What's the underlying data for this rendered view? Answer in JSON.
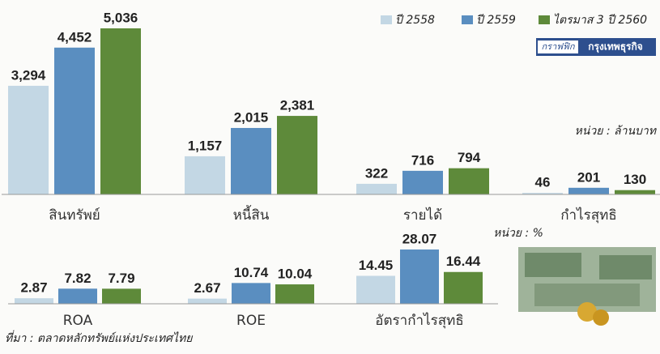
{
  "chart_data": [
    {
      "type": "bar",
      "unit": "หน่วย : ล้านบาท",
      "categories": [
        "สินทรัพย์",
        "หนี้สิน",
        "รายได้",
        "กำไรสุทธิ"
      ],
      "series": [
        {
          "name": "ปี 2558",
          "color": "#c3d7e4",
          "values": [
            3294,
            1157,
            322,
            46
          ],
          "value_labels": [
            "3,294",
            "1,157",
            "322",
            "46"
          ]
        },
        {
          "name": "ปี 2559",
          "color": "#5a8ec0",
          "values": [
            4452,
            2015,
            716,
            201
          ],
          "value_labels": [
            "4,452",
            "2,015",
            "716",
            "201"
          ]
        },
        {
          "name": "ไตรมาส 3 ปี 2560",
          "color": "#5e8a3a",
          "values": [
            5036,
            2381,
            794,
            130
          ],
          "value_labels": [
            "5,036",
            "2,381",
            "794",
            "130"
          ]
        }
      ],
      "legend": "top-right"
    },
    {
      "type": "bar",
      "unit": "หน่วย : %",
      "categories": [
        "ROA",
        "ROE",
        "อัตรากำไรสุทธิ"
      ],
      "series": [
        {
          "color": "#c3d7e4",
          "values": [
            2.87,
            2.67,
            14.45
          ]
        },
        {
          "color": "#5a8ec0",
          "values": [
            7.82,
            10.74,
            28.07
          ]
        },
        {
          "color": "#5e8a3a",
          "values": [
            7.79,
            10.04,
            16.44
          ]
        }
      ]
    }
  ],
  "brand": {
    "left": "กราฟฟิก",
    "right": "กรุงเทพธุรกิจ"
  },
  "source": "ที่มา : ตลาดหลักทรัพย์แห่งประเทศไทย"
}
